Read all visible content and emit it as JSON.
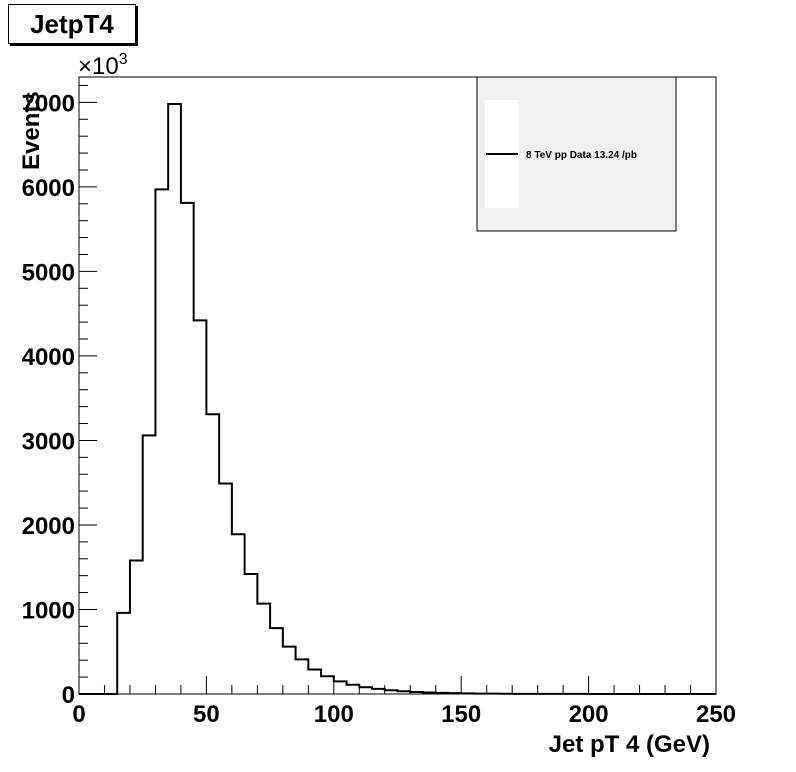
{
  "chart_data": {
    "type": "bar",
    "title": "JetpT4",
    "xlabel": "Jet pT 4 (GeV)",
    "ylabel": "Events",
    "y_multiplier": "×10",
    "y_multiplier_exponent": "3",
    "xlim": [
      0,
      250
    ],
    "ylim": [
      0,
      7300
    ],
    "bin_width": 5,
    "x_ticks": [
      0,
      50,
      100,
      150,
      200,
      250
    ],
    "y_ticks": [
      0,
      1000,
      2000,
      3000,
      4000,
      5000,
      6000,
      7000
    ],
    "x_tick_labels": [
      "0",
      "50",
      "100",
      "150",
      "200",
      "250"
    ],
    "y_tick_labels": [
      "0",
      "1000",
      "2000",
      "3000",
      "4000",
      "5000",
      "6000",
      "7000"
    ],
    "bin_edges_low": [
      0,
      5,
      10,
      15,
      20,
      25,
      30,
      35,
      40,
      45,
      50,
      55,
      60,
      65,
      70,
      75,
      80,
      85,
      90,
      95,
      100,
      105,
      110,
      115,
      120,
      125,
      130,
      135,
      140,
      145,
      150,
      155,
      160,
      165,
      170,
      175,
      180,
      185,
      190,
      195,
      200,
      205,
      210,
      215,
      220,
      225,
      230,
      235,
      240,
      245
    ],
    "values": [
      0,
      0,
      0,
      960,
      1580,
      3060,
      5970,
      6980,
      5810,
      4420,
      3310,
      2490,
      1890,
      1420,
      1070,
      780,
      560,
      410,
      290,
      210,
      150,
      110,
      80,
      60,
      45,
      32,
      24,
      18,
      13,
      10,
      7,
      5,
      4,
      3,
      2,
      2,
      1,
      1,
      1,
      1,
      0,
      0,
      0,
      0,
      0,
      0,
      0,
      0,
      0,
      0
    ],
    "series": [
      {
        "name": "8 TeV pp Data 13.24 /pb"
      }
    ],
    "legend_position": "top-right",
    "grid": false
  }
}
